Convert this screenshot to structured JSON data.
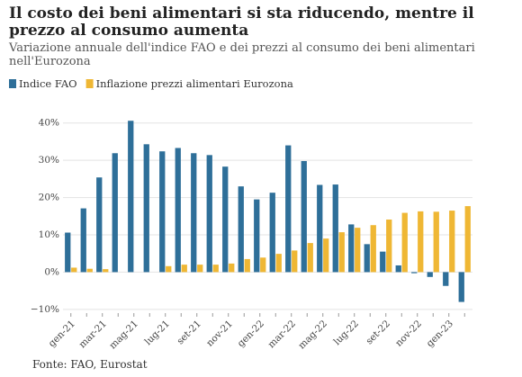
{
  "chart_data": {
    "type": "bar",
    "title": "Il costo dei beni alimentari si sta riducendo, mentre il prezzo al consumo aumenta",
    "subtitle": "Variazione annuale dell'indice FAO e dei prezzi al consumo dei beni alimentari nell'Eurozona",
    "source": "Fonte: FAO, Eurostat",
    "categories": [
      "gen-21",
      null,
      "mar-21",
      null,
      "mag-21",
      null,
      "lug-21",
      null,
      "set-21",
      null,
      "nov-21",
      null,
      "gen-22",
      null,
      "mar-22",
      null,
      "mag-22",
      null,
      "lug-22",
      null,
      "set-22",
      null,
      "nov-22",
      null,
      "gen-23",
      null
    ],
    "series": [
      {
        "name": "Indice FAO",
        "color": "#2e6f99",
        "values": [
          10.6,
          17.1,
          25.4,
          31.9,
          40.6,
          34.3,
          32.4,
          33.3,
          31.9,
          31.4,
          28.3,
          23.0,
          19.5,
          21.3,
          34.0,
          29.8,
          23.4,
          23.5,
          12.8,
          7.5,
          5.5,
          1.8,
          -0.3,
          -1.3,
          -3.7,
          -8.0
        ]
      },
      {
        "name": "Inflazione prezzi alimentari Eurozona",
        "color": "#efb734",
        "values": [
          1.2,
          0.9,
          0.8,
          0,
          0,
          0,
          1.6,
          2.0,
          2.0,
          2.0,
          2.3,
          3.5,
          3.9,
          4.9,
          5.8,
          7.8,
          9.0,
          10.7,
          11.9,
          12.6,
          14.1,
          15.9,
          16.3,
          16.2,
          16.5,
          17.7
        ]
      }
    ],
    "ylim": [
      -11,
      45
    ],
    "yticks": [
      {
        "value": -10,
        "label": "−10%"
      },
      {
        "value": 0,
        "label": "0%"
      },
      {
        "value": 10,
        "label": "10%"
      },
      {
        "value": 20,
        "label": "20%"
      },
      {
        "value": 30,
        "label": "30%"
      },
      {
        "value": 40,
        "label": "40%"
      }
    ],
    "grid": true,
    "legend": "top-left"
  }
}
